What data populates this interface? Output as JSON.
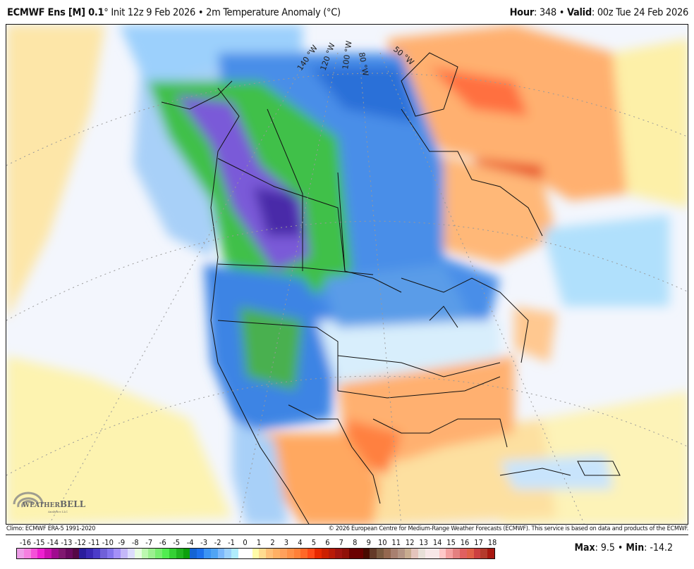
{
  "header": {
    "model": "ECMWF Ens [M] 0.1",
    "deg": "°",
    "init": " Init 12z 9 Feb 2026 • 2m Temperature Anomaly (°C)",
    "hour_label": "Hour",
    "hour_value": ": 348 • ",
    "valid_label": "Valid",
    "valid_value": ": 00z Tue 24 Feb 2026"
  },
  "map": {
    "longitude_labels": [
      "140 °W",
      "120 °W",
      "100 °W",
      "80 °W",
      "50 °W"
    ],
    "logo_text": "WeatherBELL",
    "logo_subtext": "Analytics LLC"
  },
  "footer": {
    "climo": "Climo: ECMWF ERA-5 1991-2020",
    "copyright": "© 2026 European Centre for Medium-Range Weather Forecasts (ECMWF). This service is based on data and products of the ECMWF."
  },
  "colorbar": {
    "labels": [
      "-16",
      "-15",
      "-14",
      "-13",
      "-12",
      "-11",
      "-10",
      "-9",
      "-8",
      "-7",
      "-6",
      "-5",
      "-4",
      "-3",
      "-2",
      "-1",
      "0",
      "1",
      "2",
      "3",
      "4",
      "5",
      "6",
      "7",
      "8",
      "9",
      "10",
      "11",
      "12",
      "13",
      "14",
      "15",
      "16",
      "17",
      "18"
    ],
    "colors": [
      "#ee9ee8",
      "#f580e0",
      "#f550d8",
      "#ee20d0",
      "#cc10b0",
      "#a00c90",
      "#801870",
      "#6a0a60",
      "#550845",
      "#2a1c9c",
      "#3a28b4",
      "#4c3cc8",
      "#7060d8",
      "#8474ec",
      "#a490f8",
      "#c4b8f8",
      "#dcdcfc",
      "#e6fce0",
      "#bcf8b0",
      "#9cf090",
      "#78ee70",
      "#50ee50",
      "#34d034",
      "#20b420",
      "#0ca00c",
      "#1464d4",
      "#1c70ec",
      "#3c94f4",
      "#50a4f4",
      "#7cb8fc",
      "#9cd0fc",
      "#b0ecfc",
      "#ffffff",
      "#ffffff",
      "#fffca8",
      "#ffdc90",
      "#ffc078",
      "#ffb064",
      "#ffa05c",
      "#ff9048",
      "#ff8038",
      "#ff6828",
      "#ff4a18",
      "#e82800",
      "#cc2000",
      "#b81a08",
      "#a01410",
      "#901008",
      "#6a0000",
      "#6a0000",
      "#480a00",
      "#643a28",
      "#7a5a40",
      "#946850",
      "#a88070",
      "#b49484",
      "#c8ac90",
      "#e4c4bc",
      "#e8e0d8",
      "#f8e8e8",
      "#f8e8e8",
      "#ffc8c8",
      "#f4a0a0",
      "#e48080",
      "#e06060",
      "#e06048",
      "#cc4040",
      "#b43a2c",
      "#a81810"
    ]
  },
  "stats": {
    "max_label": "Max",
    "max_value": ": 9.5 • ",
    "min_label": "Min",
    "min_value": ": -14.2"
  }
}
